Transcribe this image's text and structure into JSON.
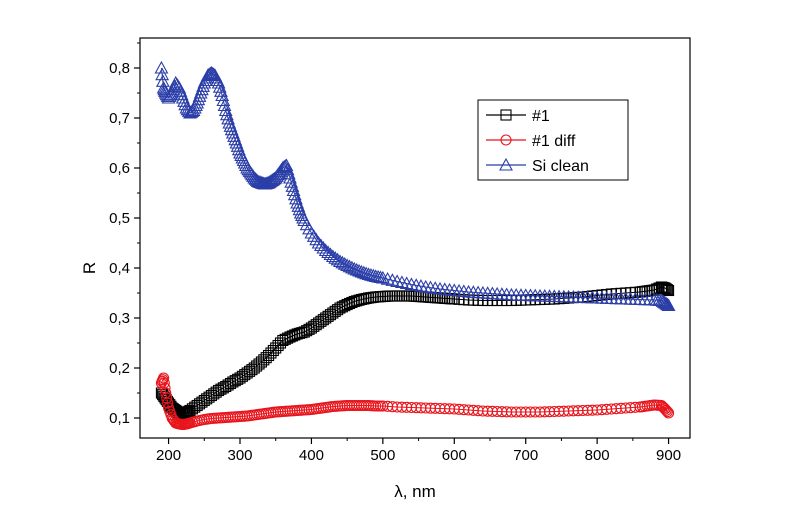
{
  "chart_data": {
    "type": "scatter",
    "title": "",
    "xlabel": "λ, nm",
    "ylabel": "R",
    "xlim": [
      160,
      930
    ],
    "ylim": [
      0.06,
      0.86
    ],
    "x_ticks": [
      200,
      300,
      400,
      500,
      600,
      700,
      800,
      900
    ],
    "x_tick_labels": [
      "200",
      "300",
      "400",
      "500",
      "600",
      "700",
      "800",
      "900"
    ],
    "y_ticks": [
      0.1,
      0.2,
      0.3,
      0.4,
      0.5,
      0.6,
      0.7,
      0.8
    ],
    "y_tick_labels": [
      "0,1",
      "0,2",
      "0,3",
      "0,4",
      "0,5",
      "0,6",
      "0,7",
      "0,8"
    ],
    "grid": false,
    "legend_position": "top-right",
    "series": [
      {
        "name": "#1",
        "marker": "square",
        "color": "#000000",
        "x": [
          190,
          195,
          200,
          205,
          210,
          215,
          220,
          225,
          230,
          240,
          250,
          260,
          270,
          280,
          290,
          300,
          310,
          320,
          330,
          340,
          350,
          360,
          370,
          380,
          390,
          400,
          410,
          420,
          430,
          440,
          450,
          460,
          470,
          480,
          490,
          500,
          510,
          520,
          530,
          540,
          550,
          560,
          570,
          580,
          590,
          600,
          620,
          640,
          660,
          680,
          700,
          720,
          740,
          760,
          780,
          800,
          820,
          840,
          860,
          870,
          880,
          890,
          895,
          900
        ],
        "y": [
          0.15,
          0.14,
          0.13,
          0.12,
          0.115,
          0.11,
          0.108,
          0.11,
          0.115,
          0.125,
          0.135,
          0.145,
          0.155,
          0.163,
          0.172,
          0.18,
          0.19,
          0.2,
          0.212,
          0.225,
          0.24,
          0.255,
          0.262,
          0.268,
          0.272,
          0.28,
          0.29,
          0.3,
          0.31,
          0.32,
          0.327,
          0.333,
          0.337,
          0.34,
          0.342,
          0.343,
          0.344,
          0.344,
          0.344,
          0.344,
          0.343,
          0.342,
          0.341,
          0.34,
          0.339,
          0.338,
          0.336,
          0.335,
          0.335,
          0.335,
          0.336,
          0.337,
          0.338,
          0.34,
          0.342,
          0.345,
          0.348,
          0.35,
          0.352,
          0.354,
          0.356,
          0.362,
          0.36,
          0.355
        ]
      },
      {
        "name": "#1 diff",
        "marker": "circle",
        "color": "#e8141c",
        "x": [
          190,
          193,
          196,
          200,
          205,
          210,
          215,
          220,
          225,
          230,
          240,
          250,
          260,
          270,
          280,
          290,
          300,
          310,
          320,
          330,
          340,
          350,
          360,
          370,
          380,
          390,
          400,
          410,
          420,
          430,
          440,
          450,
          460,
          470,
          480,
          490,
          500,
          520,
          540,
          560,
          580,
          600,
          620,
          640,
          660,
          680,
          700,
          720,
          740,
          760,
          780,
          800,
          820,
          840,
          860,
          870,
          880,
          890,
          895,
          900
        ],
        "y": [
          0.17,
          0.18,
          0.15,
          0.12,
          0.1,
          0.09,
          0.088,
          0.087,
          0.088,
          0.09,
          0.094,
          0.097,
          0.099,
          0.1,
          0.101,
          0.102,
          0.103,
          0.104,
          0.106,
          0.108,
          0.11,
          0.112,
          0.113,
          0.114,
          0.115,
          0.116,
          0.117,
          0.119,
          0.121,
          0.123,
          0.124,
          0.125,
          0.125,
          0.125,
          0.125,
          0.124,
          0.124,
          0.122,
          0.121,
          0.12,
          0.119,
          0.118,
          0.116,
          0.114,
          0.113,
          0.112,
          0.112,
          0.112,
          0.113,
          0.114,
          0.115,
          0.116,
          0.118,
          0.12,
          0.122,
          0.124,
          0.126,
          0.125,
          0.118,
          0.11
        ]
      },
      {
        "name": "Si clean",
        "marker": "triangle",
        "color": "#2b3ea8",
        "x": [
          190,
          193,
          196,
          200,
          205,
          210,
          215,
          220,
          225,
          230,
          235,
          240,
          245,
          250,
          255,
          260,
          265,
          270,
          275,
          280,
          285,
          290,
          295,
          300,
          305,
          310,
          315,
          320,
          325,
          330,
          335,
          340,
          345,
          350,
          355,
          360,
          365,
          370,
          375,
          380,
          385,
          390,
          400,
          410,
          420,
          430,
          440,
          450,
          460,
          470,
          480,
          490,
          500,
          520,
          540,
          560,
          580,
          600,
          620,
          640,
          660,
          680,
          700,
          720,
          740,
          760,
          780,
          800,
          820,
          840,
          860,
          880,
          890,
          895,
          900
        ],
        "y": [
          0.8,
          0.76,
          0.75,
          0.74,
          0.75,
          0.77,
          0.76,
          0.74,
          0.72,
          0.71,
          0.715,
          0.73,
          0.75,
          0.77,
          0.785,
          0.79,
          0.785,
          0.77,
          0.745,
          0.715,
          0.69,
          0.67,
          0.65,
          0.63,
          0.615,
          0.6,
          0.59,
          0.58,
          0.573,
          0.57,
          0.568,
          0.57,
          0.575,
          0.58,
          0.59,
          0.6,
          0.605,
          0.58,
          0.555,
          0.53,
          0.51,
          0.495,
          0.47,
          0.45,
          0.435,
          0.423,
          0.413,
          0.405,
          0.398,
          0.392,
          0.387,
          0.383,
          0.38,
          0.373,
          0.367,
          0.362,
          0.358,
          0.355,
          0.352,
          0.35,
          0.348,
          0.346,
          0.345,
          0.344,
          0.343,
          0.342,
          0.341,
          0.34,
          0.339,
          0.338,
          0.337,
          0.336,
          0.335,
          0.33,
          0.325
        ]
      }
    ]
  }
}
